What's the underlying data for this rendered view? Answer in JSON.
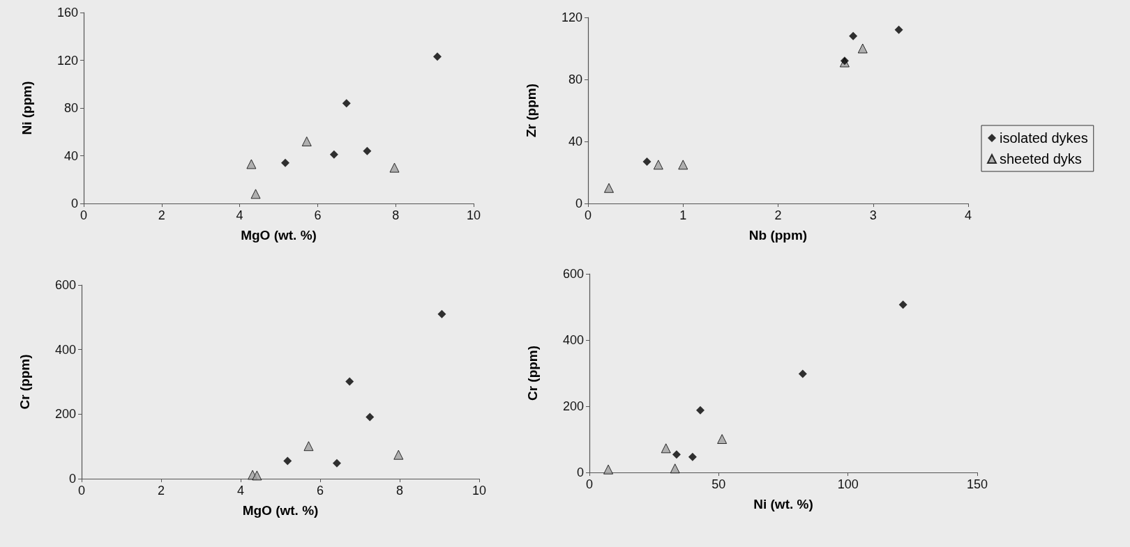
{
  "chart_data": [
    {
      "type": "scatter",
      "xlabel": "MgO (wt. %)",
      "ylabel": "Ni (ppm)",
      "xlim": [
        0,
        10
      ],
      "xticks": [
        0,
        2,
        4,
        6,
        8,
        10
      ],
      "ylim": [
        0,
        160
      ],
      "yticks": [
        0,
        40,
        80,
        120,
        160
      ],
      "grid": false,
      "legend": false,
      "series": [
        {
          "color": "#000000",
          "marker": "diamond",
          "x": [
            5.17,
            6.42,
            6.74,
            7.27,
            9.07
          ],
          "values": [
            34,
            41,
            84,
            44,
            123
          ]
        },
        {
          "color": "#a0a0a0",
          "marker": "triangle",
          "x": [
            4.3,
            4.41,
            5.72,
            7.97
          ],
          "values": [
            33,
            8,
            52,
            30
          ]
        }
      ]
    },
    {
      "type": "scatter",
      "xlabel": "Nb (ppm)",
      "ylabel": "Zr (ppm)",
      "xlim": [
        0,
        4
      ],
      "xticks": [
        0,
        1,
        2,
        3,
        4
      ],
      "ylim": [
        0,
        120
      ],
      "yticks": [
        0,
        40,
        80,
        120
      ],
      "grid": false,
      "legend": "right",
      "series": [
        {
          "name": "isolated dykes",
          "color": "#000000",
          "marker": "diamond",
          "x": [
            0.62,
            2.7,
            2.79,
            3.27
          ],
          "values": [
            27,
            92,
            108,
            112
          ]
        },
        {
          "name": "sheeted dyks",
          "color": "#a0a0a0",
          "marker": "triangle",
          "x": [
            0.22,
            0.74,
            1.0,
            2.7,
            2.89
          ],
          "values": [
            10,
            25,
            25,
            91,
            100
          ]
        }
      ]
    },
    {
      "type": "scatter",
      "xlabel": "MgO (wt. %)",
      "ylabel": "Cr (ppm)",
      "xlim": [
        0,
        10
      ],
      "xticks": [
        0,
        2,
        4,
        6,
        8,
        10
      ],
      "ylim": [
        0,
        600
      ],
      "yticks": [
        0,
        200,
        400,
        600
      ],
      "grid": false,
      "legend": false,
      "series": [
        {
          "color": "#000000",
          "marker": "diamond",
          "x": [
            5.18,
            6.42,
            6.74,
            7.25,
            9.06
          ],
          "values": [
            55,
            48,
            301,
            191,
            510
          ]
        },
        {
          "color": "#a0a0a0",
          "marker": "triangle",
          "x": [
            4.3,
            4.41,
            5.71,
            7.97
          ],
          "values": [
            12,
            10,
            101,
            74
          ]
        }
      ]
    },
    {
      "type": "scatter",
      "xlabel": "Ni (wt. %)",
      "ylabel": "Cr (ppm)",
      "xlim": [
        0,
        150
      ],
      "xticks": [
        0,
        50,
        100,
        150
      ],
      "ylim": [
        0,
        600
      ],
      "yticks": [
        0,
        200,
        400,
        600
      ],
      "grid": false,
      "legend": false,
      "series": [
        {
          "color": "#000000",
          "marker": "diamond",
          "x": [
            33.7,
            39.9,
            42.9,
            82.5,
            121.3
          ],
          "values": [
            54,
            47,
            188,
            298,
            507
          ]
        },
        {
          "color": "#a0a0a0",
          "marker": "triangle",
          "x": [
            7.3,
            29.6,
            33.1,
            51.3
          ],
          "values": [
            9,
            73,
            12,
            101
          ]
        }
      ]
    }
  ]
}
